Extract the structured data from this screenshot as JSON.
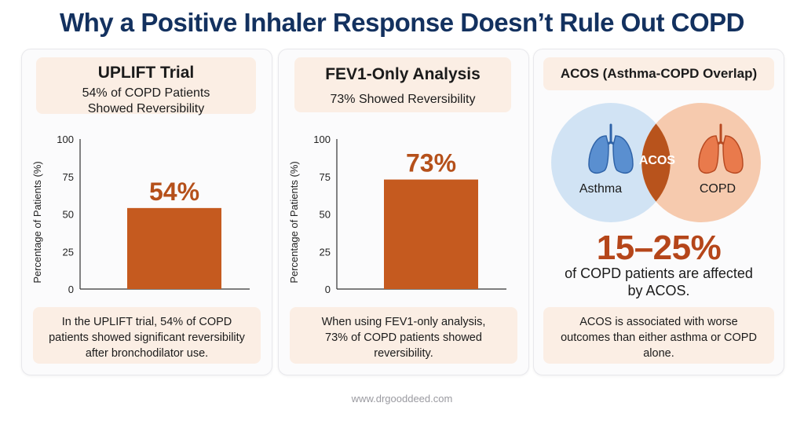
{
  "page": {
    "title": "Why a Positive Inhaler Response Doesn’t Rule Out COPD",
    "footer": "www.drgooddeed.com"
  },
  "colors": {
    "bar": "#c55a1f",
    "accent_text": "#b5461a",
    "header_bg": "#fbeee4",
    "asthma_circle": "#cfe1f3",
    "copd_circle": "#f6c7aa",
    "overlap": "#b8531c",
    "title": "#13315f"
  },
  "panels": [
    {
      "title": "UPLIFT Trial",
      "subtitle_line1": "54% of COPD Patients",
      "subtitle_line2": "Showed Reversibility",
      "value_label": "54%",
      "note_line1": "In the UPLIFT trial, 54% of COPD",
      "note_line2": "patients showed significant reversibility",
      "note_line3": "after bronchodilator use."
    },
    {
      "title": "FEV1-Only Analysis",
      "subtitle_line1": "73% Showed Reversibility",
      "value_label": "73%",
      "note_line1": "When using FEV1-only analysis,",
      "note_line2": "73% of COPD patients showed",
      "note_line3": "reversibility."
    },
    {
      "title": "ACOS (Asthma-COPD Overlap)",
      "venn": {
        "left_label": "Asthma",
        "overlap_label": "ACOS",
        "right_label": "COPD",
        "left_icon": "lungs-icon",
        "right_icon": "lungs-icon"
      },
      "range": "15–25%",
      "range_desc_line1": "of COPD patients are affected",
      "range_desc_line2": "by ACOS.",
      "note_line1": "ACOS is associated with worse",
      "note_line2": "outcomes than either asthma or COPD",
      "note_line3": "alone."
    }
  ],
  "chart_data": [
    {
      "type": "bar",
      "title": "UPLIFT Trial",
      "categories": [
        ""
      ],
      "values": [
        54
      ],
      "ylabel": "Percentage of Patients (%)",
      "ylim": [
        0,
        100
      ],
      "yticks": [
        "0",
        "25",
        "50",
        "75",
        "100"
      ],
      "data_labels": [
        "54%"
      ],
      "grid": false
    },
    {
      "type": "bar",
      "title": "FEV1-Only Analysis",
      "categories": [
        ""
      ],
      "values": [
        73
      ],
      "ylabel": "Percentage of Patients (%)",
      "ylim": [
        0,
        100
      ],
      "yticks": [
        "0",
        "25",
        "50",
        "75",
        "100"
      ],
      "data_labels": [
        "73%"
      ],
      "grid": false
    }
  ]
}
